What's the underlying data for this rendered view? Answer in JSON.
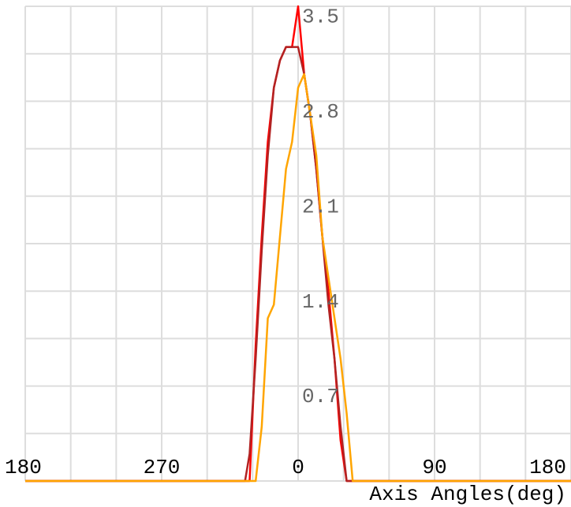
{
  "chart_data": {
    "type": "line",
    "x_label": "Axis Angles(deg)",
    "x": [
      -180,
      -35,
      -32,
      -28,
      -24,
      -20,
      -16,
      -12,
      -8,
      -4,
      0,
      4,
      8,
      12,
      16,
      20,
      24,
      28,
      32,
      36,
      180
    ],
    "series": [
      {
        "color": "#ff0000",
        "values": [
          0,
          0,
          0,
          1.0,
          1.8,
          2.5,
          2.9,
          3.1,
          3.2,
          3.2,
          3.5,
          3.0,
          2.7,
          2.3,
          1.8,
          1.4,
          0.9,
          0.3,
          0,
          0,
          0
        ]
      },
      {
        "color": "#b22222",
        "values": [
          0,
          0,
          0.2,
          0.9,
          1.7,
          2.4,
          2.9,
          3.1,
          3.2,
          3.2,
          3.2,
          3.0,
          2.7,
          2.3,
          1.8,
          1.3,
          0.9,
          0.4,
          0,
          0,
          0
        ]
      },
      {
        "color": "#ffa500",
        "values": [
          0,
          0,
          0,
          0,
          0.4,
          1.2,
          1.3,
          1.8,
          2.3,
          2.5,
          2.9,
          3.0,
          2.7,
          2.4,
          1.8,
          1.5,
          1.2,
          0.9,
          0.5,
          0,
          0
        ]
      }
    ],
    "xlim": [
      -180,
      180
    ],
    "xticks": [
      {
        "value": -180,
        "label": "180"
      },
      {
        "value": -90,
        "label": "270"
      },
      0,
      90,
      {
        "value": 180,
        "label": "180"
      }
    ],
    "xminor": [
      -150,
      -120,
      -60,
      -30,
      30,
      60,
      120,
      150
    ],
    "ylim": [
      0,
      3.5
    ],
    "yticks": [
      0.7,
      1.4,
      2.1,
      2.8,
      3.5
    ],
    "yminor": [
      0,
      0.35,
      1.05,
      1.75,
      2.45,
      3.15
    ],
    "grid": true
  }
}
